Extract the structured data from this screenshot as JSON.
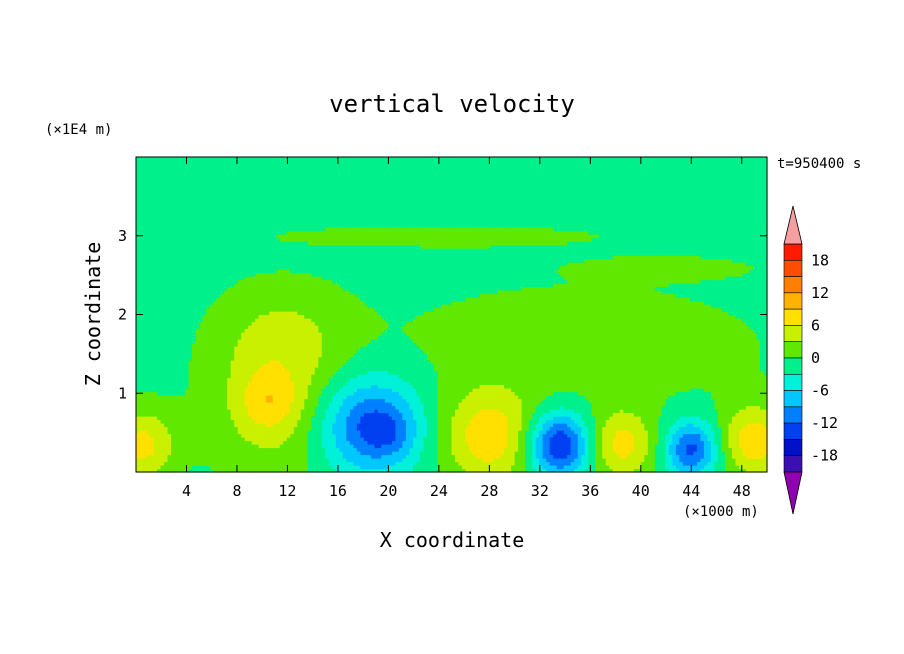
{
  "chart_data": {
    "type": "heatmap",
    "title": "vertical velocity",
    "time_label": "t=950400 s",
    "xlabel": "X coordinate",
    "ylabel": "Z coordinate",
    "x_unit": "(×1000 m)",
    "y_unit": "(×1E4 m)",
    "xlim": [
      0,
      50
    ],
    "ylim": [
      0,
      4
    ],
    "x_ticks": [
      4,
      8,
      12,
      16,
      20,
      24,
      28,
      32,
      36,
      40,
      44,
      48
    ],
    "y_ticks": [
      1,
      2,
      3
    ],
    "colorbar": {
      "ticks": [
        18,
        12,
        6,
        0,
        -6,
        -12,
        -18
      ],
      "min": -21,
      "max": 21,
      "levels": [
        {
          "lo": 18,
          "hi": 21,
          "color": "#ff1a00"
        },
        {
          "lo": 15,
          "hi": 18,
          "color": "#ff4d00"
        },
        {
          "lo": 12,
          "hi": 15,
          "color": "#ff8000"
        },
        {
          "lo": 9,
          "hi": 12,
          "color": "#ffb300"
        },
        {
          "lo": 6,
          "hi": 9,
          "color": "#ffe000"
        },
        {
          "lo": 3,
          "hi": 6,
          "color": "#c8f000"
        },
        {
          "lo": 0,
          "hi": 3,
          "color": "#60e800"
        },
        {
          "lo": -3,
          "hi": 0,
          "color": "#00f08c"
        },
        {
          "lo": -6,
          "hi": -3,
          "color": "#00f0d8"
        },
        {
          "lo": -9,
          "hi": -6,
          "color": "#00c8ff"
        },
        {
          "lo": -12,
          "hi": -9,
          "color": "#0080ff"
        },
        {
          "lo": -15,
          "hi": -12,
          "color": "#0040f0"
        },
        {
          "lo": -18,
          "hi": -15,
          "color": "#0010c8"
        },
        {
          "lo": -21,
          "hi": -18,
          "color": "#3a10b0"
        }
      ],
      "over_color": "#f5a0a0",
      "under_color": "#9000b0"
    },
    "background_value": -1,
    "features": [
      {
        "x": 0.5,
        "z": 0.35,
        "rx": 2.6,
        "rz": 0.45,
        "amp": 8
      },
      {
        "x": 11,
        "z": 0.95,
        "rx": 5,
        "rz": 1.0,
        "amp": 6
      },
      {
        "x": 10.5,
        "z": 0.9,
        "rx": 2.2,
        "rz": 0.35,
        "amp": 4
      },
      {
        "x": 18.5,
        "z": 0.6,
        "rx": 4,
        "rz": 0.6,
        "amp": -12
      },
      {
        "x": 20,
        "z": 0.5,
        "rx": 2,
        "rz": 0.3,
        "amp": -3
      },
      {
        "x": 28,
        "z": 0.45,
        "rx": 3.8,
        "rz": 0.6,
        "amp": 9
      },
      {
        "x": 33.5,
        "z": 0.35,
        "rx": 2.4,
        "rz": 0.4,
        "amp": -15
      },
      {
        "x": 38.5,
        "z": 0.35,
        "rx": 2.6,
        "rz": 0.45,
        "amp": 8
      },
      {
        "x": 44,
        "z": 0.3,
        "rx": 2,
        "rz": 0.35,
        "amp": -12
      },
      {
        "x": 49,
        "z": 0.4,
        "rx": 2.6,
        "rz": 0.45,
        "amp": 9
      },
      {
        "x": 35,
        "z": 1.6,
        "rx": 15,
        "rz": 0.8,
        "amp": 2.5
      },
      {
        "x": 12,
        "z": 1.8,
        "rx": 5,
        "rz": 0.6,
        "amp": 2.5
      },
      {
        "x": 24,
        "z": 3.0,
        "rx": 14,
        "rz": 0.15,
        "amp": 2
      },
      {
        "x": 42,
        "z": 2.6,
        "rx": 7,
        "rz": 0.15,
        "amp": 2
      }
    ]
  }
}
